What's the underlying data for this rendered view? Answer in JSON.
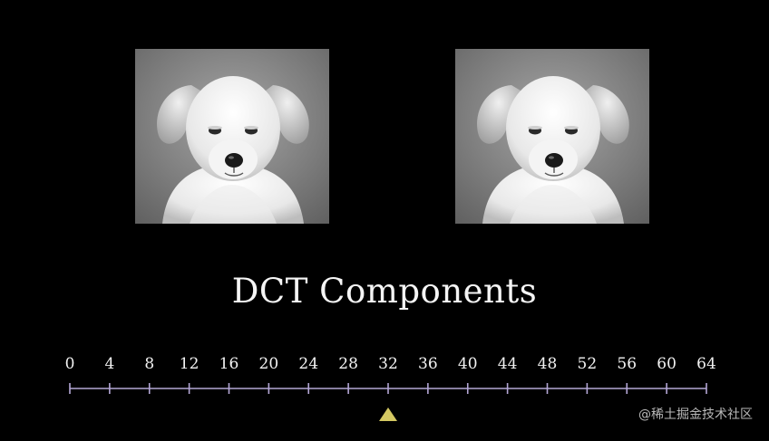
{
  "title": "DCT Components",
  "watermark": "@稀土掘金技术社区",
  "slider": {
    "min": 0,
    "max": 64,
    "tick_labels": [
      "0",
      "4",
      "8",
      "12",
      "16",
      "20",
      "24",
      "28",
      "32",
      "36",
      "40",
      "44",
      "48",
      "52",
      "56",
      "60",
      "64"
    ],
    "value": 32,
    "line_color": "#b4a7d6",
    "marker_color": "#d4c862"
  },
  "images": [
    {
      "name": "original-puppy-image",
      "icon": "puppy-photo"
    },
    {
      "name": "reconstructed-puppy-image",
      "icon": "puppy-photo"
    }
  ]
}
